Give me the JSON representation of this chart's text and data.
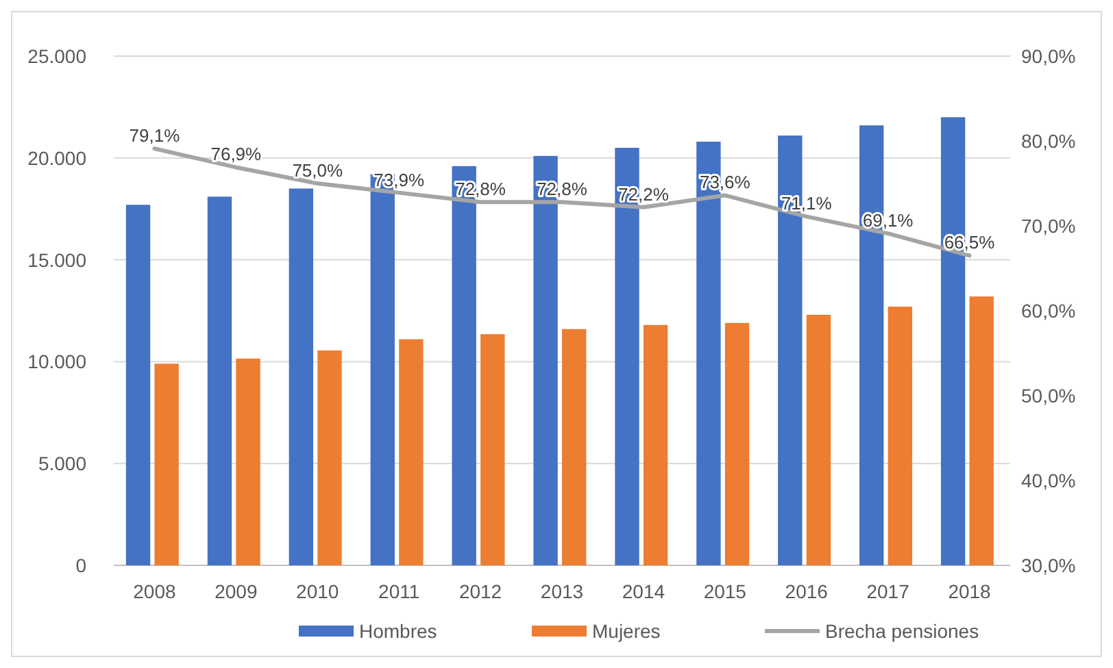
{
  "chart_data": {
    "type": "bar",
    "categories": [
      "2008",
      "2009",
      "2010",
      "2011",
      "2012",
      "2013",
      "2014",
      "2015",
      "2016",
      "2017",
      "2018"
    ],
    "series": [
      {
        "name": "Hombres",
        "color": "#4472c4",
        "values": [
          17700,
          18100,
          18500,
          19200,
          19600,
          20100,
          20500,
          20800,
          21100,
          21600,
          22000
        ]
      },
      {
        "name": "Mujeres",
        "color": "#ed7d31",
        "values": [
          9900,
          10150,
          10550,
          11100,
          11350,
          11600,
          11800,
          11900,
          12300,
          12700,
          13200
        ]
      },
      {
        "name": "Brecha pensiones",
        "type": "line",
        "axis": "y2",
        "color": "#a5a5a5",
        "values": [
          79.1,
          76.9,
          75.0,
          73.9,
          72.8,
          72.8,
          72.2,
          73.6,
          71.1,
          69.1,
          66.5
        ],
        "value_labels": [
          "79,1%",
          "76,9%",
          "75,0%",
          "73,9%",
          "72,8%",
          "72,8%",
          "72,2%",
          "73,6%",
          "71,1%",
          "69,1%",
          "66,5%"
        ]
      }
    ],
    "ylim": [
      0,
      25000
    ],
    "yticks": [
      {
        "value": 0,
        "label": "0"
      },
      {
        "value": 5000,
        "label": "5.000"
      },
      {
        "value": 10000,
        "label": "10.000"
      },
      {
        "value": 15000,
        "label": "15.000"
      },
      {
        "value": 20000,
        "label": "20.000"
      },
      {
        "value": 25000,
        "label": "25.000"
      }
    ],
    "y2lim": [
      30,
      90
    ],
    "y2ticks": [
      {
        "value": 30,
        "label": "30,0%"
      },
      {
        "value": 40,
        "label": "40,0%"
      },
      {
        "value": 50,
        "label": "50,0%"
      },
      {
        "value": 60,
        "label": "60,0%"
      },
      {
        "value": 70,
        "label": "70,0%"
      },
      {
        "value": 80,
        "label": "80,0%"
      },
      {
        "value": 90,
        "label": "90,0%"
      }
    ],
    "grid": "y",
    "legend": "bottom",
    "marker": "none",
    "line_style": "solid"
  }
}
